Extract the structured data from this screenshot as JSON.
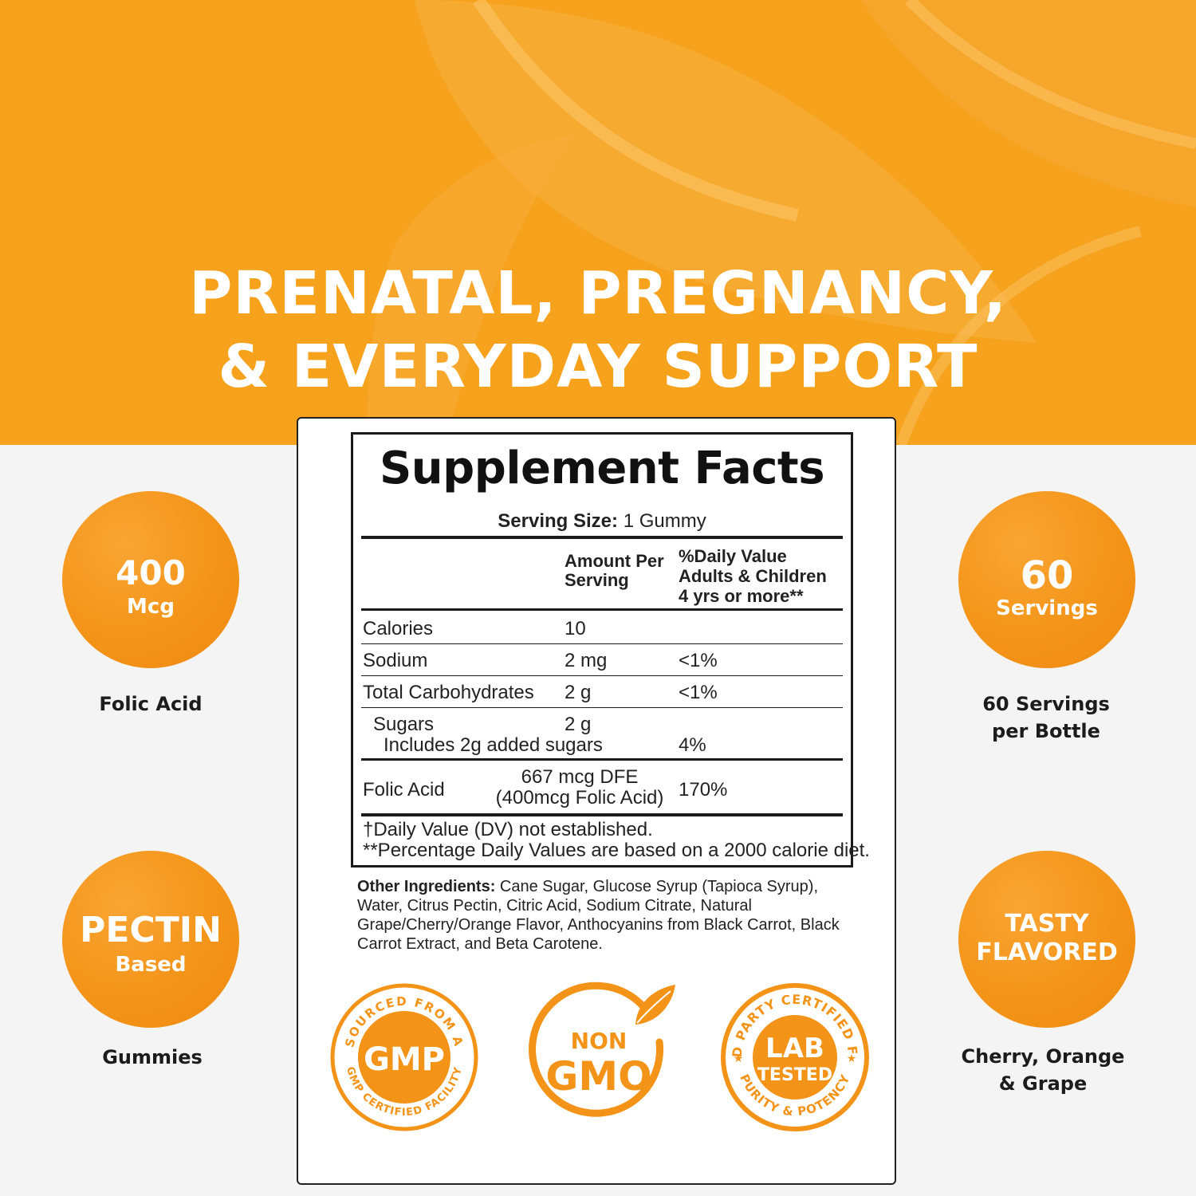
{
  "headline": {
    "line1": "PRENATAL, PREGNANCY,",
    "line2": "& EVERYDAY SUPPORT"
  },
  "colors": {
    "brand_orange": "#f6a21d",
    "badge_orange": "#f39317",
    "text_dark": "#1a1a1a",
    "background": "#f4f4f4"
  },
  "badges": {
    "folic": {
      "value": "400",
      "unit": "Mcg",
      "caption": "Folic Acid"
    },
    "servings": {
      "value": "60",
      "unit": "Servings",
      "caption_line1": "60 Servings",
      "caption_line2": "per Bottle"
    },
    "pectin": {
      "value": "PECTIN",
      "unit": "Based",
      "caption": "Gummies"
    },
    "tasty": {
      "line1": "TASTY",
      "line2": "FLAVORED",
      "caption_line1": "Cherry, Orange",
      "caption_line2": "& Grape"
    }
  },
  "facts": {
    "title": "Supplement Facts",
    "serving_label": "Serving Size:",
    "serving_value": "1 Gummy",
    "header_amount_1": "Amount Per",
    "header_amount_2": "Serving",
    "header_dv_1": "%Daily Value",
    "header_dv_2": "Adults & Children",
    "header_dv_3": "4 yrs or more**",
    "rows": {
      "calories": {
        "name": "Calories",
        "amount": "10",
        "dv": ""
      },
      "sodium": {
        "name": "Sodium",
        "amount": "2 mg",
        "dv": "<1%"
      },
      "carbs": {
        "name": "Total Carbohydrates",
        "amount": "2 g",
        "dv": "<1%"
      },
      "sugars": {
        "name": "Sugars",
        "amount": "2 g",
        "sub": "Includes 2g added sugars",
        "dv": "4%"
      },
      "folic": {
        "name": "Folic Acid",
        "amount_1": "667 mcg DFE",
        "amount_2": "(400mcg Folic Acid)",
        "dv": "170%"
      }
    },
    "footnote_1": "†Daily Value (DV) not established.",
    "footnote_2": "**Percentage Daily Values are based on a 2000 calorie diet."
  },
  "other_ingredients": {
    "label": "Other Ingredients:",
    "text": "Cane Sugar, Glucose Syrup (Tapioca Syrup), Water, Citrus Pectin, Citric Acid, Sodium Citrate, Natural Grape/Cherry/Orange Flavor, Anthocyanins from Black Carrot, Black Carrot Extract, and Beta Carotene."
  },
  "seals": {
    "gmp": {
      "top_text": "SOURCED FROM A",
      "center": "GMP",
      "bottom_text": "GMP CERTIFIED FACILITY"
    },
    "nongmo": {
      "line1": "NON",
      "line2": "GMO"
    },
    "lab": {
      "top_text": "3RD PARTY CERTIFIED FOR",
      "line1": "LAB",
      "line2": "TESTED",
      "bottom_text": "PURITY & POTENCY"
    }
  }
}
